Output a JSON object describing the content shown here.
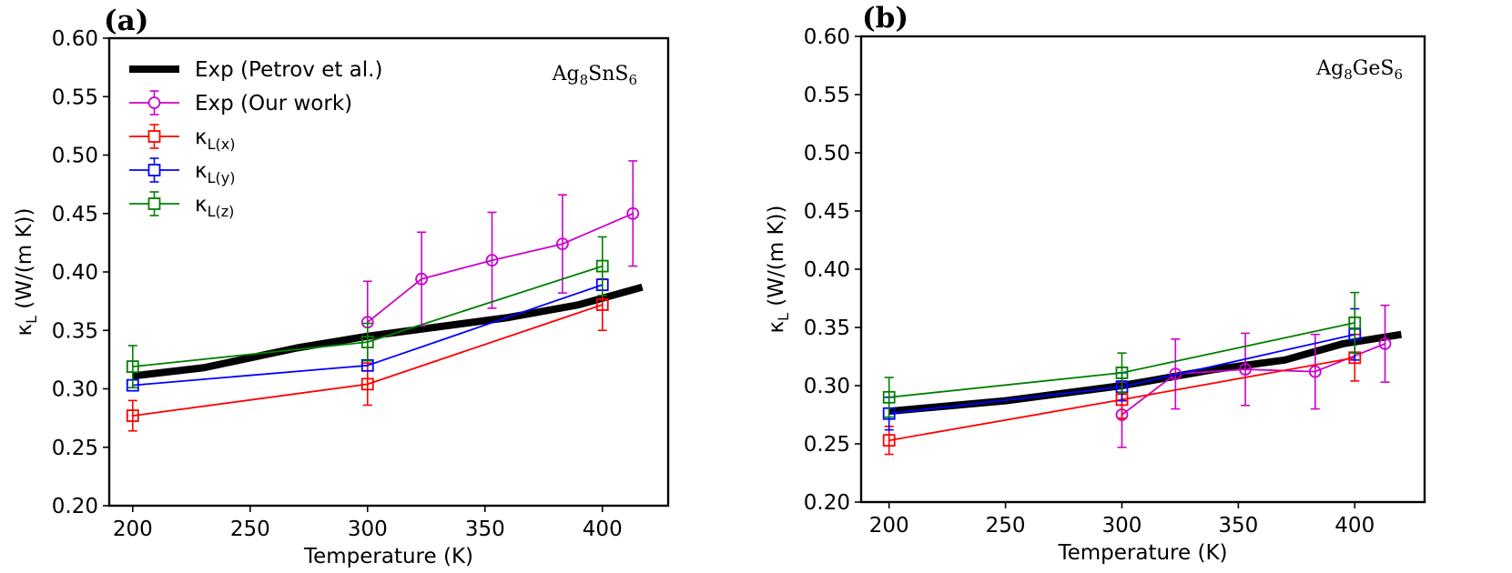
{
  "chart_data": [
    {
      "type": "line",
      "panel_label": "(a)",
      "compound": {
        "base": "Ag",
        "sub1": "8",
        "mid": "SnS",
        "sub2": "6"
      },
      "xlabel": "Temperature (K)",
      "ylabel": {
        "main": "κ",
        "sub": "L",
        "rest": " (W/(m K))"
      },
      "xlim": [
        190,
        428
      ],
      "ylim": [
        0.2,
        0.6
      ],
      "xticks": [
        200,
        250,
        300,
        350,
        400
      ],
      "yticks": [
        "0.20",
        "0.25",
        "0.30",
        "0.35",
        "0.40",
        "0.45",
        "0.50",
        "0.55",
        "0.60"
      ],
      "legend_position": "top-left",
      "grid": false,
      "series": [
        {
          "name": "Exp (Petrov et al.)",
          "color": "#000000",
          "marker": "none",
          "width": 8,
          "x": [
            200,
            230,
            270,
            300,
            330,
            360,
            390,
            417
          ],
          "y": [
            0.311,
            0.318,
            0.335,
            0.345,
            0.353,
            0.361,
            0.372,
            0.387
          ],
          "err": null
        },
        {
          "name": "Exp (Our work)",
          "color": "#cc00cc",
          "marker": "circle",
          "width": 1.8,
          "x": [
            300,
            323,
            353,
            383,
            413
          ],
          "y": [
            0.357,
            0.394,
            0.41,
            0.424,
            0.45
          ],
          "err": [
            0.035,
            0.04,
            0.041,
            0.042,
            0.045
          ]
        },
        {
          "name": "κL(x)",
          "label_main": "κ",
          "label_sub": "L(x)",
          "color": "#ff0000",
          "marker": "square",
          "width": 1.8,
          "x": [
            200,
            300,
            400
          ],
          "y": [
            0.277,
            0.304,
            0.372
          ],
          "err": [
            0.013,
            0.018,
            0.022
          ]
        },
        {
          "name": "κL(y)",
          "label_main": "κ",
          "label_sub": "L(y)",
          "color": "#0000ff",
          "marker": "square",
          "width": 1.8,
          "x": [
            200,
            300,
            400
          ],
          "y": [
            0.303,
            0.32,
            0.389
          ],
          "err": null
        },
        {
          "name": "κL(z)",
          "label_main": "κ",
          "label_sub": "L(z)",
          "color": "#008000",
          "marker": "square",
          "width": 1.8,
          "x": [
            200,
            300,
            400
          ],
          "y": [
            0.319,
            0.34,
            0.405
          ],
          "err": [
            0.018,
            0.016,
            0.025
          ]
        }
      ]
    },
    {
      "type": "line",
      "panel_label": "(b)",
      "compound": {
        "base": "Ag",
        "sub1": "8",
        "mid": "GeS",
        "sub2": "6"
      },
      "xlabel": "Temperature (K)",
      "ylabel": {
        "main": "κ",
        "sub": "L",
        "rest": " (W/(m K))"
      },
      "xlim": [
        188,
        430
      ],
      "ylim": [
        0.2,
        0.6
      ],
      "xticks": [
        200,
        250,
        300,
        350,
        400
      ],
      "yticks": [
        "0.20",
        "0.25",
        "0.30",
        "0.35",
        "0.40",
        "0.45",
        "0.50",
        "0.55",
        "0.60"
      ],
      "legend_position": "none",
      "grid": false,
      "series": [
        {
          "name": "Exp (Petrov et al.)",
          "color": "#000000",
          "marker": "none",
          "width": 8,
          "x": [
            200,
            250,
            300,
            340,
            370,
            395,
            420
          ],
          "y": [
            0.278,
            0.287,
            0.3,
            0.314,
            0.322,
            0.336,
            0.344
          ],
          "err": null
        },
        {
          "name": "Exp (Our work)",
          "color": "#cc00cc",
          "marker": "circle",
          "width": 1.8,
          "x": [
            300,
            323,
            353,
            383,
            413
          ],
          "y": [
            0.275,
            0.31,
            0.314,
            0.312,
            0.336
          ],
          "err": [
            0.028,
            0.03,
            0.031,
            0.032,
            0.033
          ]
        },
        {
          "name": "κL(x)",
          "color": "#ff0000",
          "marker": "square",
          "width": 1.8,
          "x": [
            200,
            300,
            400
          ],
          "y": [
            0.253,
            0.288,
            0.324
          ],
          "err": [
            0.012,
            0.016,
            0.02
          ]
        },
        {
          "name": "κL(y)",
          "color": "#0000ff",
          "marker": "square",
          "width": 1.8,
          "x": [
            200,
            300,
            400
          ],
          "y": [
            0.276,
            0.299,
            0.344
          ],
          "err": [
            0.014,
            0.012,
            0.022
          ]
        },
        {
          "name": "κL(z)",
          "color": "#008000",
          "marker": "square",
          "width": 1.8,
          "x": [
            200,
            300,
            400
          ],
          "y": [
            0.29,
            0.311,
            0.354
          ],
          "err": [
            0.017,
            0.017,
            0.026
          ]
        }
      ]
    }
  ]
}
